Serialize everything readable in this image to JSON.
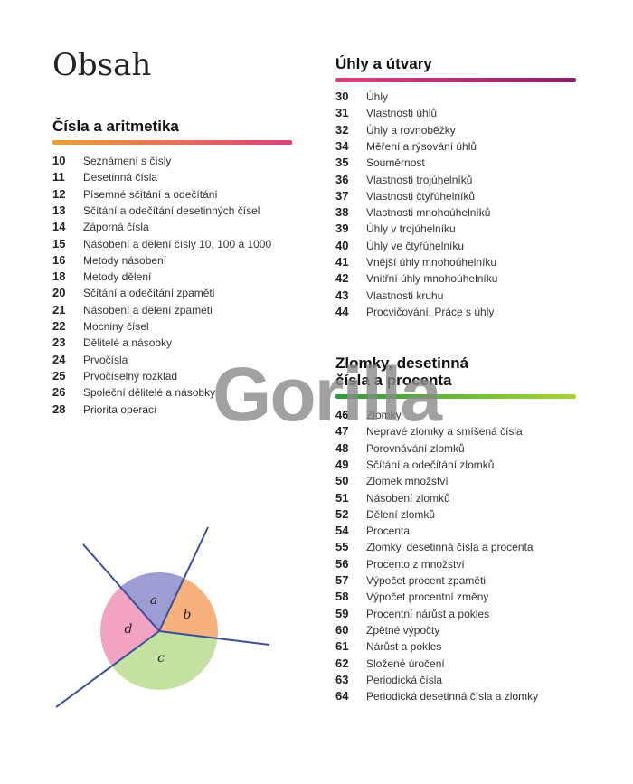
{
  "title": "Obsah",
  "watermark": "Gorilla",
  "sections": [
    {
      "heading": [
        "Čísla a aritmetika"
      ],
      "entries": [
        {
          "page": 10,
          "text": "Seznámení s čísly"
        },
        {
          "page": 11,
          "text": "Desetinná čísla"
        },
        {
          "page": 12,
          "text": "Písemné sčítání a odečítání"
        },
        {
          "page": 13,
          "text": "Sčítání a odečítání desetinných čísel"
        },
        {
          "page": 14,
          "text": "Záporná čísla"
        },
        {
          "page": 15,
          "text": "Násobení a dělení čísly 10, 100 a 1000"
        },
        {
          "page": 16,
          "text": "Metody násobení"
        },
        {
          "page": 18,
          "text": "Metody dělení"
        },
        {
          "page": 20,
          "text": "Sčítání a odečítání zpaměti"
        },
        {
          "page": 21,
          "text": "Násobení a dělení zpaměti"
        },
        {
          "page": 22,
          "text": "Mocniny čísel"
        },
        {
          "page": 23,
          "text": "Dělitelé a násobky"
        },
        {
          "page": 24,
          "text": "Prvočísla"
        },
        {
          "page": 25,
          "text": "Prvočíselný rozklad"
        },
        {
          "page": 26,
          "text": "Společní dělitelé a násobky"
        },
        {
          "page": 28,
          "text": "Priorita operací"
        }
      ]
    },
    {
      "heading": [
        "Úhly a útvary"
      ],
      "entries": [
        {
          "page": 30,
          "text": "Úhly"
        },
        {
          "page": 31,
          "text": "Vlastnosti úhlů"
        },
        {
          "page": 32,
          "text": "Úhly a rovnoběžky"
        },
        {
          "page": 34,
          "text": "Měření a rýsování úhlů"
        },
        {
          "page": 35,
          "text": "Souměrnost"
        },
        {
          "page": 36,
          "text": "Vlastnosti trojúhelníků"
        },
        {
          "page": 37,
          "text": "Vlastnosti čtyřúhelníků"
        },
        {
          "page": 38,
          "text": "Vlastnosti mnohoúhelníků"
        },
        {
          "page": 39,
          "text": "Úhly v trojúhelníku"
        },
        {
          "page": 40,
          "text": "Úhly ve čtyřúhelníku"
        },
        {
          "page": 41,
          "text": "Vnější úhly mnohoúhelníku"
        },
        {
          "page": 42,
          "text": "Vnitřní úhly mnohoúhelníku"
        },
        {
          "page": 43,
          "text": "Vlastnosti kruhu"
        },
        {
          "page": 44,
          "text": "Procvičování: Práce s úhly"
        }
      ]
    },
    {
      "heading": [
        "Zlomky, desetinná",
        "čísla a procenta"
      ],
      "entries": [
        {
          "page": 46,
          "text": "Zlomky"
        },
        {
          "page": 47,
          "text": "Nepravé zlomky a smíšená čísla"
        },
        {
          "page": 48,
          "text": "Porovnávání zlomků"
        },
        {
          "page": 49,
          "text": "Sčítání a odečítání zlomků"
        },
        {
          "page": 50,
          "text": "Zlomek množství"
        },
        {
          "page": 51,
          "text": "Násobení zlomků"
        },
        {
          "page": 52,
          "text": "Dělení zlomků"
        },
        {
          "page": 54,
          "text": "Procenta"
        },
        {
          "page": 55,
          "text": "Zlomky, desetinná čísla a procenta"
        },
        {
          "page": 56,
          "text": "Procento z množství"
        },
        {
          "page": 57,
          "text": "Výpočet procent zpaměti"
        },
        {
          "page": 58,
          "text": "Výpočet procentní změny"
        },
        {
          "page": 59,
          "text": "Procentní nárůst a pokles"
        },
        {
          "page": 60,
          "text": "Zpětné výpočty"
        },
        {
          "page": 61,
          "text": "Nárůst a pokles"
        },
        {
          "page": 62,
          "text": "Složené úročení"
        },
        {
          "page": 63,
          "text": "Periodická čísla"
        },
        {
          "page": 64,
          "text": "Periodická desetinná čísla a zlomky"
        }
      ]
    }
  ],
  "diagram": {
    "labels": [
      "a",
      "b",
      "c",
      "d"
    ]
  }
}
